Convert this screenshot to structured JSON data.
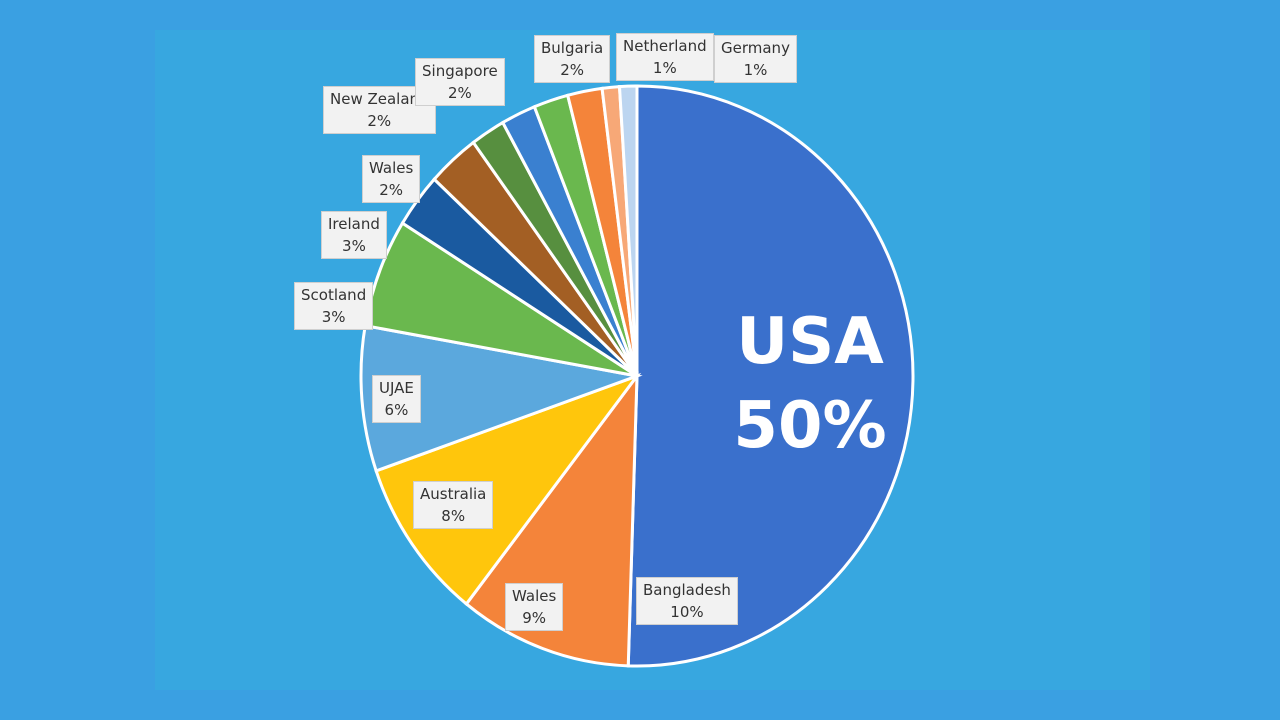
{
  "chart_data": {
    "type": "pie",
    "title": "",
    "slices": [
      {
        "label": "USA",
        "value": 50,
        "display": "50%",
        "color": "#3a70cc"
      },
      {
        "label": "Bangladesh",
        "value": 10,
        "display": "10%",
        "color": "#f4843a"
      },
      {
        "label": "Wales",
        "value": 9,
        "display": "9%",
        "color": "#ffc60c"
      },
      {
        "label": "Australia",
        "value": 8,
        "display": "8%",
        "color": "#5ba8dd"
      },
      {
        "label": "UJAE",
        "value": 6,
        "display": "6%",
        "color": "#6ab84e"
      },
      {
        "label": "Scotland",
        "value": 3,
        "display": "3%",
        "color": "#1a5aa0"
      },
      {
        "label": "Ireland",
        "value": 3,
        "display": "3%",
        "color": "#a35f24"
      },
      {
        "label": "Wales",
        "value": 2,
        "display": "2%",
        "color": "#578f3f"
      },
      {
        "label": "New Zealand",
        "value": 2,
        "display": "2%",
        "color": "#3a80d0"
      },
      {
        "label": "Singapore",
        "value": 2,
        "display": "2%",
        "color": "#6ab84e"
      },
      {
        "label": "Bulgaria",
        "value": 2,
        "display": "2%",
        "color": "#f4843a"
      },
      {
        "label": "Netherland",
        "value": 1,
        "display": "1%",
        "color": "#f7a877"
      },
      {
        "label": "Germany",
        "value": 1,
        "display": "1%",
        "color": "#bcd5f0"
      }
    ]
  }
}
